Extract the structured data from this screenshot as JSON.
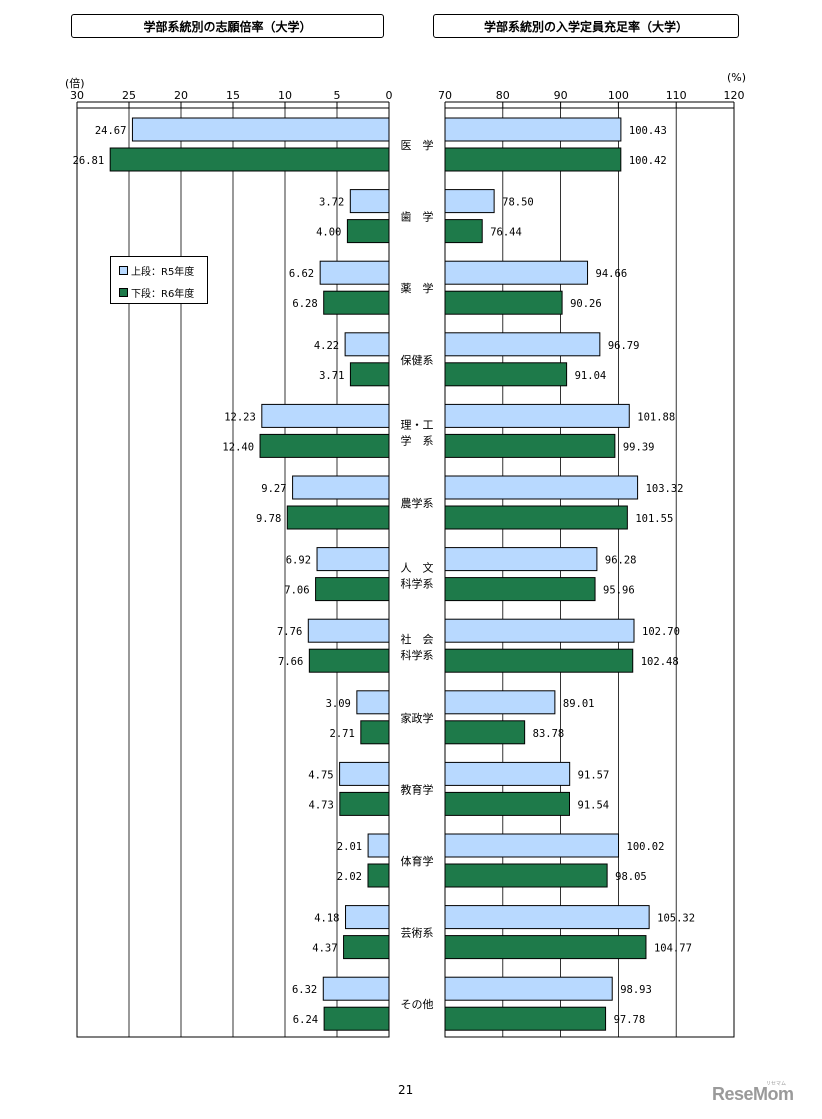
{
  "page_number": "21",
  "logo_text": "ReseMom",
  "logo_subtext": "リセマム",
  "legend": {
    "upper_label": "上段：R5年度",
    "lower_label": "下段：R6年度"
  },
  "colors": {
    "r5_fill": "#b8d9ff",
    "r6_fill": "#1e7a4a",
    "axis": "#000000"
  },
  "chart_data": [
    {
      "type": "bar",
      "orientation": "horizontal",
      "title": "学部系統別の志願倍率（大学）",
      "unit_label": "(倍)",
      "xlim": [
        30,
        0
      ],
      "ticks": [
        30,
        25,
        20,
        15,
        10,
        5,
        0
      ],
      "tick_labels": [
        "30",
        "25",
        "20",
        "15",
        "10",
        "5",
        "0"
      ],
      "categories": [
        "医　学",
        "歯　学",
        "薬　学",
        "保健系",
        "理・工\n学　系",
        "農学系",
        "人　文\n科学系",
        "社　会\n科学系",
        "家政学",
        "教育学",
        "体育学",
        "芸術系",
        "その他"
      ],
      "series": [
        {
          "name": "R5年度",
          "values": [
            24.67,
            3.72,
            6.62,
            4.22,
            12.23,
            9.27,
            6.92,
            7.76,
            3.09,
            4.75,
            2.01,
            4.18,
            6.32
          ],
          "labels": [
            "24.67",
            "3.72",
            "6.62",
            "4.22",
            "12.23",
            "9.27",
            "6.92",
            "7.76",
            "3.09",
            "4.75",
            "2.01",
            "4.18",
            "6.32"
          ]
        },
        {
          "name": "R6年度",
          "values": [
            26.81,
            4.0,
            6.28,
            3.71,
            12.4,
            9.78,
            7.06,
            7.66,
            2.71,
            4.73,
            2.02,
            4.37,
            6.24
          ],
          "labels": [
            "26.81",
            "4.00",
            "6.28",
            "3.71",
            "12.40",
            "9.78",
            "7.06",
            "7.66",
            "2.71",
            "4.73",
            "2.02",
            "4.37",
            "6.24"
          ]
        }
      ]
    },
    {
      "type": "bar",
      "orientation": "horizontal",
      "title": "学部系統別の入学定員充足率（大学）",
      "unit_label": "(%)",
      "xlim": [
        70,
        120
      ],
      "ticks": [
        70,
        80,
        90,
        100,
        110,
        120
      ],
      "tick_labels": [
        "70",
        "80",
        "90",
        "100",
        "110",
        "120"
      ],
      "series": [
        {
          "name": "R5年度",
          "values": [
            100.43,
            78.5,
            94.66,
            96.79,
            101.88,
            103.32,
            96.28,
            102.7,
            89.01,
            91.57,
            100.02,
            105.32,
            98.93
          ],
          "labels": [
            "100.43",
            "78.50",
            "94.66",
            "96.79",
            "101.88",
            "103.32",
            "96.28",
            "102.70",
            "89.01",
            "91.57",
            "100.02",
            "105.32",
            "98.93"
          ]
        },
        {
          "name": "R6年度",
          "values": [
            100.42,
            76.44,
            90.26,
            91.04,
            99.39,
            101.55,
            95.96,
            102.48,
            83.78,
            91.54,
            98.05,
            104.77,
            97.78
          ],
          "labels": [
            "100.42",
            "76.44",
            "90.26",
            "91.04",
            "99.39",
            "101.55",
            "95.96",
            "102.48",
            "83.78",
            "91.54",
            "98.05",
            "104.77",
            "97.78"
          ]
        }
      ]
    }
  ]
}
